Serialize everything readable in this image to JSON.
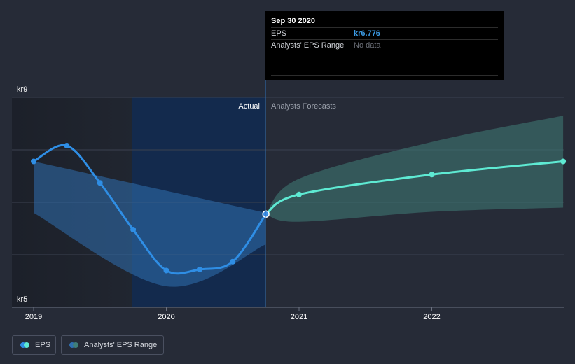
{
  "chart_data": {
    "type": "line",
    "currency_prefix": "kr",
    "y_axis": {
      "min": 5,
      "max": 9,
      "gridlines": [
        5,
        6,
        7,
        8,
        9
      ],
      "tick_labels": [
        "kr5",
        "kr9"
      ]
    },
    "x_axis": {
      "tick_labels": [
        "2019",
        "2020",
        "2021",
        "2022"
      ],
      "tick_values": [
        2019,
        2020,
        2021,
        2022
      ],
      "range": [
        2019,
        2022.99
      ]
    },
    "region_labels": {
      "actual": "Actual",
      "forecast": "Analysts Forecasts"
    },
    "actual_divider_x": 2019.75,
    "series": [
      {
        "name": "EPS",
        "kind": "actual",
        "color": "#2f8ee5",
        "points": [
          {
            "x": 2019.0,
            "y": 7.78
          },
          {
            "x": 2019.25,
            "y": 8.08
          },
          {
            "x": 2019.5,
            "y": 7.37
          },
          {
            "x": 2019.75,
            "y": 6.48
          },
          {
            "x": 2020.0,
            "y": 5.7
          },
          {
            "x": 2020.25,
            "y": 5.72
          },
          {
            "x": 2020.5,
            "y": 5.87
          },
          {
            "x": 2020.75,
            "y": 6.776
          }
        ]
      },
      {
        "name": "EPS forecast",
        "kind": "forecast",
        "color": "#5eead3",
        "points": [
          {
            "x": 2020.75,
            "y": 6.776
          },
          {
            "x": 2021.0,
            "y": 7.15
          },
          {
            "x": 2022.0,
            "y": 7.53
          },
          {
            "x": 2022.99,
            "y": 7.78
          }
        ]
      }
    ],
    "range_bands": [
      {
        "name": "Analysts' EPS Range (historical)",
        "color": "#2f6fb0",
        "upper": [
          [
            2019.0,
            7.78
          ],
          [
            2020.75,
            6.8
          ]
        ],
        "lower": [
          [
            2019.0,
            6.8
          ],
          [
            2020.0,
            5.4
          ],
          [
            2020.75,
            6.2
          ]
        ]
      },
      {
        "name": "Analysts' EPS Range",
        "color": "#3f7e79",
        "upper": [
          [
            2020.75,
            6.776
          ],
          [
            2021.0,
            7.45
          ],
          [
            2022.0,
            8.15
          ],
          [
            2022.99,
            8.65
          ]
        ],
        "lower": [
          [
            2020.75,
            6.776
          ],
          [
            2021.0,
            6.63
          ],
          [
            2022.0,
            6.82
          ],
          [
            2022.99,
            6.9
          ]
        ]
      }
    ]
  },
  "tooltip": {
    "date": "Sep 30 2020",
    "eps_label": "EPS",
    "eps_value": "kr6.776",
    "range_label": "Analysts' EPS Range",
    "range_value": "No data"
  },
  "legend": {
    "eps_label": "EPS",
    "range_label": "Analysts' EPS Range",
    "eps_colors": [
      "#2f8ee5",
      "#5eead3"
    ],
    "range_colors": [
      "#2f6fb0",
      "#3f7e79"
    ]
  }
}
